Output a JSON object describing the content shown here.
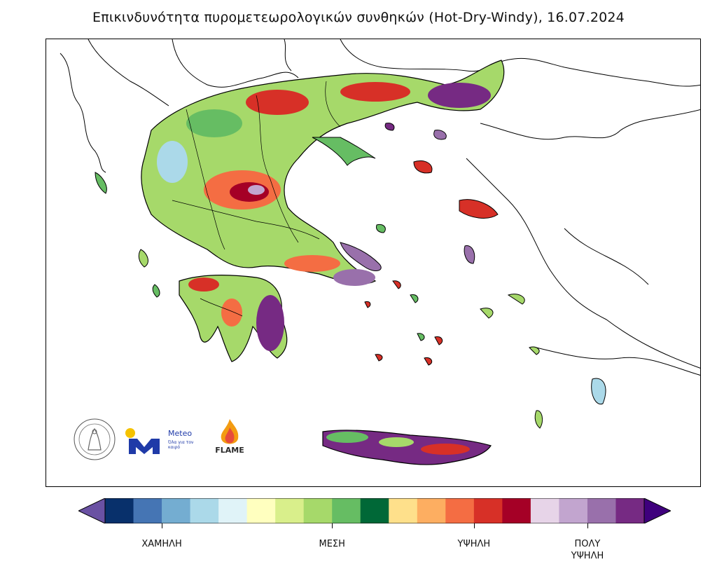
{
  "title": "Επικινδυνότητα πυρομετεωρολογικών συνθηκών (Hot-Dry-Windy), 16.07.2024",
  "logos": {
    "meteo_name": "Meteo",
    "meteo_tagline": "Όλα για τον καιρό",
    "flame_name": "FLAME"
  },
  "colorbar": {
    "under_color": "#6a51a3",
    "over_color": "#3f007d",
    "colors": [
      "#08306b",
      "#4575b4",
      "#74add1",
      "#abd9e9",
      "#e0f3f8",
      "#ffffbf",
      "#d9ef8b",
      "#a6d96a",
      "#66bd63",
      "#006837",
      "#fee08b",
      "#fdae61",
      "#f46d43",
      "#d73027",
      "#a50026",
      "#e7d4e8",
      "#c2a5cf",
      "#9970ab",
      "#762a83"
    ],
    "ticks": [
      {
        "label": "ΧΑΜΗΛΗ",
        "position": 2
      },
      {
        "label": "ΜΕΣΗ",
        "position": 8
      },
      {
        "label": "ΥΨΗΛΗ",
        "position": 13
      },
      {
        "label": "ΠΟΛΥ\nΥΨΗΛΗ",
        "position": 17
      }
    ]
  }
}
